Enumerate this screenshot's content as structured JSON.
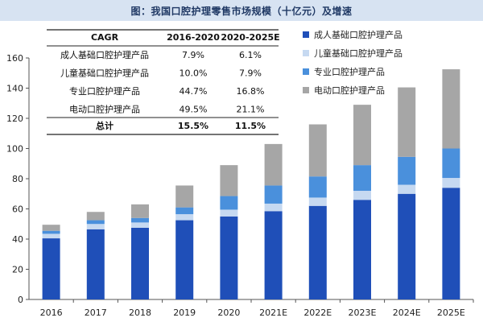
{
  "title": "图：我国口腔护理零售市场规模（十亿元）及增速",
  "colors": {
    "adult": "#1f4fb8",
    "child": "#c6d9f1",
    "professional": "#4a90dc",
    "electric": "#a6a6a6",
    "title_bg": "#d7e3f2"
  },
  "chart_data": {
    "type": "bar",
    "stacked": true,
    "categories": [
      "2016",
      "2017",
      "2018",
      "2019",
      "2020",
      "2021E",
      "2022E",
      "2023E",
      "2024E",
      "2025E"
    ],
    "ylim": [
      0,
      160
    ],
    "yticks": [
      0,
      20,
      40,
      60,
      80,
      100,
      120,
      140,
      160
    ],
    "grid": false,
    "legend_position": "right",
    "series": [
      {
        "name": "成人基础口腔护理产品",
        "color_key": "adult",
        "values": [
          40.5,
          46.5,
          47.5,
          52.5,
          55.0,
          58.5,
          62.0,
          66.0,
          70.0,
          74.0
        ]
      },
      {
        "name": "儿童基础口腔护理产品",
        "color_key": "child",
        "values": [
          3.0,
          3.5,
          3.5,
          4.0,
          4.5,
          5.0,
          5.5,
          6.0,
          6.0,
          6.5
        ]
      },
      {
        "name": "专业口腔护理产品",
        "color_key": "professional",
        "values": [
          2.0,
          2.5,
          3.0,
          4.5,
          9.0,
          12.0,
          14.0,
          17.0,
          18.5,
          19.5
        ]
      },
      {
        "name": "电动口腔护理产品",
        "color_key": "electric",
        "values": [
          4.0,
          5.5,
          9.0,
          14.5,
          20.5,
          27.5,
          34.5,
          40.0,
          46.0,
          52.5
        ]
      }
    ],
    "legend_order": [
      0,
      1,
      2,
      3
    ],
    "table": {
      "headers": [
        "CAGR",
        "2016-2020",
        "2020-2025E"
      ],
      "rows": [
        {
          "label": "成人基础口腔护理产品",
          "v1": "7.9%",
          "v2": "6.1%"
        },
        {
          "label": "儿童基础口腔护理产品",
          "v1": "10.0%",
          "v2": "7.9%"
        },
        {
          "label": "专业口腔护理产品",
          "v1": "44.7%",
          "v2": "16.8%"
        },
        {
          "label": "电动口腔护理产品",
          "v1": "49.5%",
          "v2": "21.1%"
        }
      ],
      "total": {
        "label": "总计",
        "v1": "15.5%",
        "v2": "11.5%"
      }
    }
  }
}
